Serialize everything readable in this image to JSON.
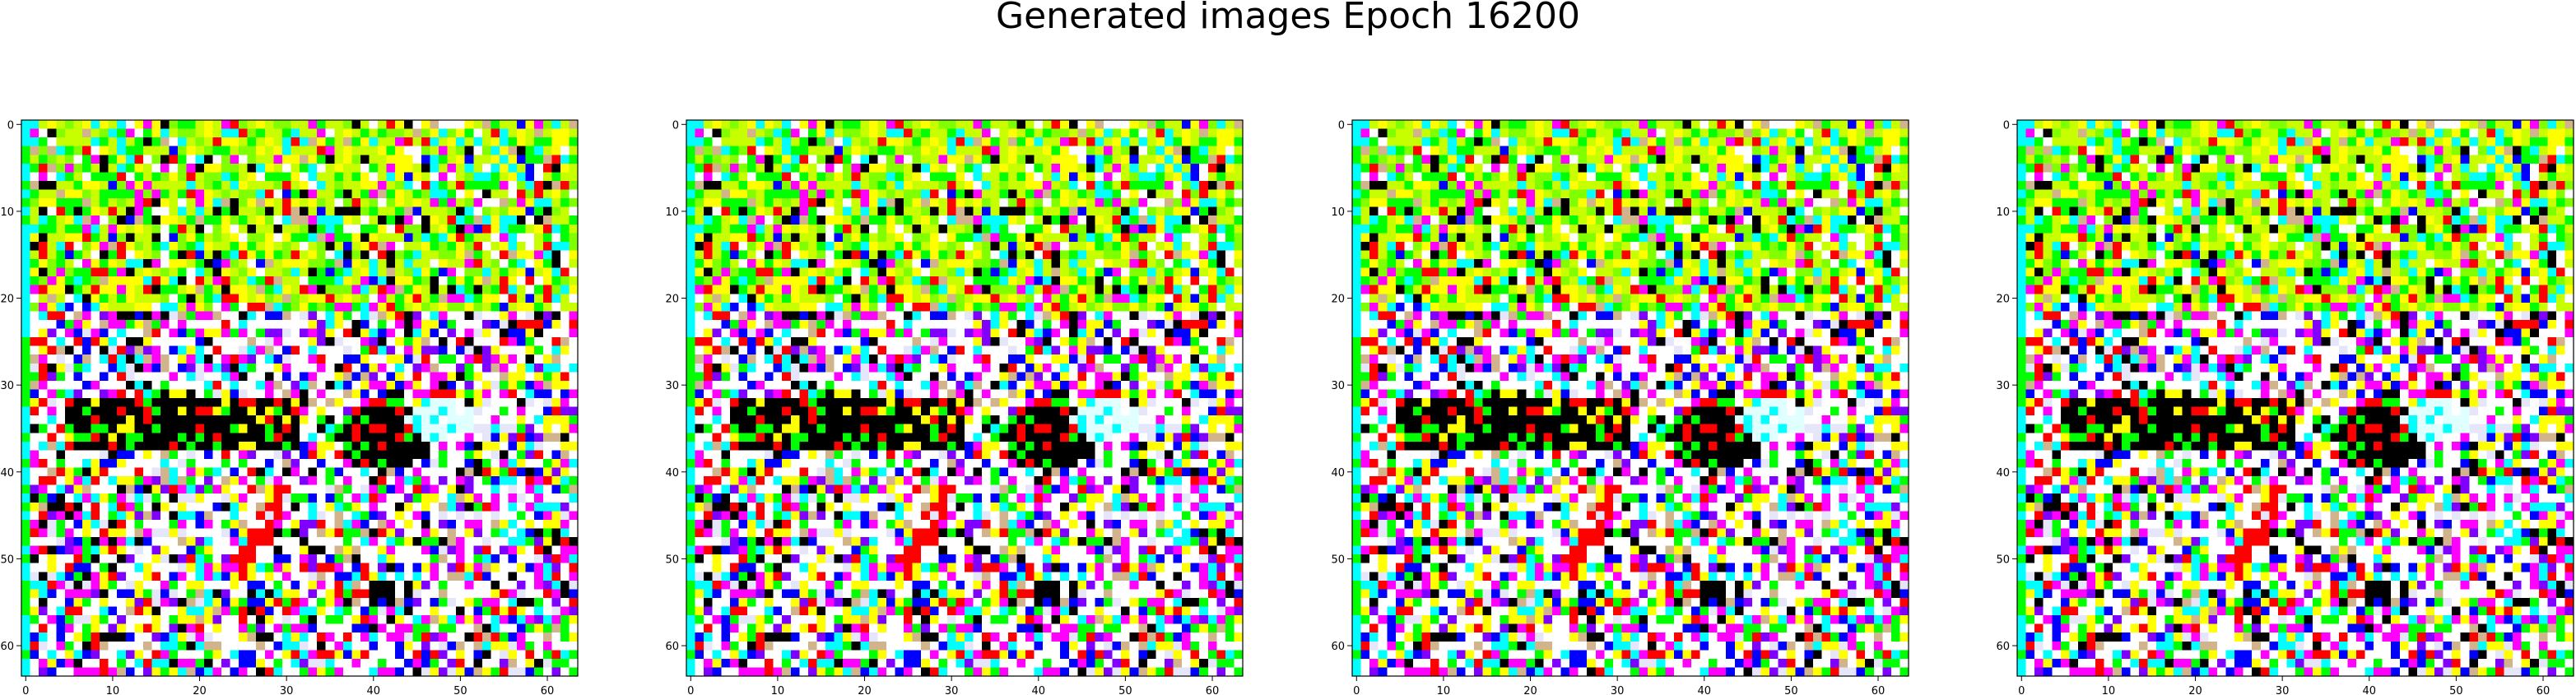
{
  "chart_data": {
    "type": "heatmap",
    "title": "Generated images Epoch 16200",
    "grid": false,
    "image_shape": [
      64,
      64,
      3
    ],
    "colormap_palette": [
      "#ffffff",
      "#ffff00",
      "#c8ff00",
      "#7fff00",
      "#00ff00",
      "#00ffff",
      "#00ff7f",
      "#ff00ff",
      "#0000ff",
      "#ff0000",
      "#000000",
      "#d2b48c",
      "#e6e6fa",
      "#7f00ff"
    ],
    "panels": [
      {
        "name": "sample-1",
        "xlim": [
          -0.5,
          63.5
        ],
        "ylim": [
          63.5,
          -0.5
        ],
        "xticks": [
          0,
          10,
          20,
          30,
          40,
          50,
          60
        ],
        "yticks": [
          0,
          10,
          20,
          30,
          40,
          50,
          60
        ],
        "xtick_labels": [
          "0",
          "10",
          "20",
          "30",
          "40",
          "50",
          "60"
        ],
        "ytick_labels": [
          "0",
          "10",
          "20",
          "30",
          "40",
          "50",
          "60"
        ]
      },
      {
        "name": "sample-2",
        "xlim": [
          -0.5,
          63.5
        ],
        "ylim": [
          63.5,
          -0.5
        ],
        "xticks": [
          0,
          10,
          20,
          30,
          40,
          50,
          60
        ],
        "yticks": [
          0,
          10,
          20,
          30,
          40,
          50,
          60
        ],
        "xtick_labels": [
          "0",
          "10",
          "20",
          "30",
          "40",
          "50",
          "60"
        ],
        "ytick_labels": [
          "0",
          "10",
          "20",
          "30",
          "40",
          "50",
          "60"
        ]
      },
      {
        "name": "sample-3",
        "xlim": [
          -0.5,
          63.5
        ],
        "ylim": [
          63.5,
          -0.5
        ],
        "xticks": [
          0,
          10,
          20,
          30,
          40,
          50,
          60
        ],
        "yticks": [
          0,
          10,
          20,
          30,
          40,
          50,
          60
        ],
        "xtick_labels": [
          "0",
          "10",
          "20",
          "30",
          "40",
          "50",
          "60"
        ],
        "ytick_labels": [
          "0",
          "10",
          "20",
          "30",
          "40",
          "50",
          "60"
        ]
      },
      {
        "name": "sample-4",
        "xlim": [
          -0.5,
          63.5
        ],
        "ylim": [
          63.5,
          -0.5
        ],
        "xticks": [
          0,
          10,
          20,
          30,
          40,
          50,
          60
        ],
        "yticks": [
          0,
          10,
          20,
          30,
          40,
          50,
          60
        ],
        "xtick_labels": [
          "0",
          "10",
          "20",
          "30",
          "40",
          "50",
          "60"
        ],
        "ytick_labels": [
          "0",
          "10",
          "20",
          "30",
          "40",
          "50",
          "60"
        ]
      }
    ]
  }
}
